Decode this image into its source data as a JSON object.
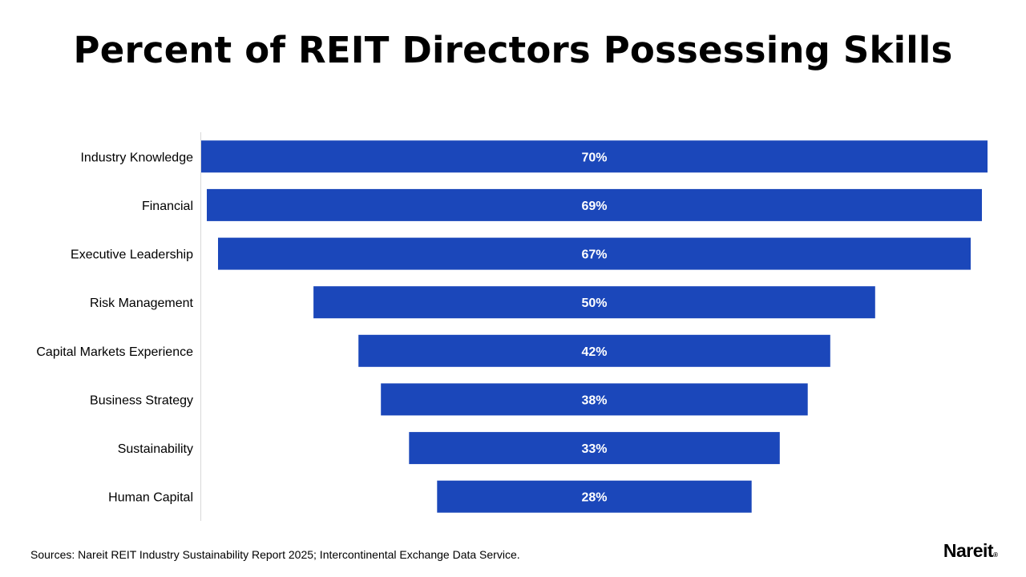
{
  "title": "Percent of REIT Directors Possessing Skills",
  "source": "Sources: Nareit REIT Industry Sustainability Report 2025; Intercontinental Exchange Data Service.",
  "logo": {
    "text": "Nareit",
    "mark": "®"
  },
  "colors": {
    "bar": "#1B47BA",
    "axis": "#D9D9D9",
    "bar_label": "#FFFFFF"
  },
  "chart_data": {
    "type": "bar",
    "orientation": "horizontal",
    "style": "funnel",
    "title": "Percent of REIT Directors Possessing Skills",
    "categories": [
      "Industry Knowledge",
      "Financial",
      "Executive Leadership",
      "Risk Management",
      "Capital Markets Experience",
      "Business Strategy",
      "Sustainability",
      "Human Capital"
    ],
    "values": [
      70,
      69,
      67,
      50,
      42,
      38,
      33,
      28
    ],
    "data_labels": [
      "70%",
      "69%",
      "67%",
      "50%",
      "42%",
      "38%",
      "33%",
      "28%"
    ],
    "unit": "%",
    "xlabel": "",
    "ylabel": "",
    "xlim": [
      0,
      70
    ],
    "grid": false,
    "legend": "none"
  }
}
